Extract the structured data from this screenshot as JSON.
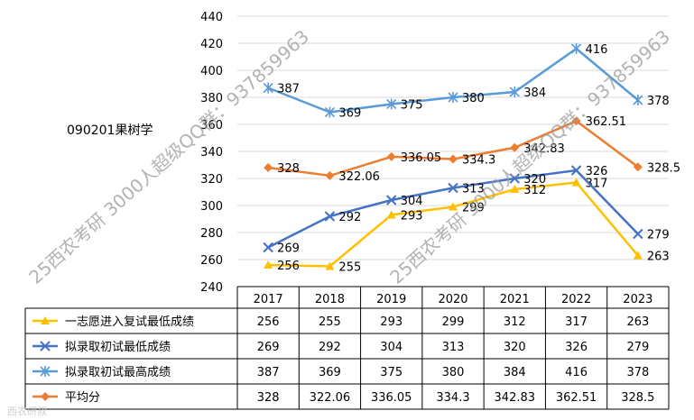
{
  "panel_label": "090201果树学",
  "watermarks": [
    "25西农考研 3000人超级QQ群：937859963",
    "25西农考研 3000人超级QQ群：937859963"
  ],
  "corner_logo": "西农研叔",
  "chart_data": {
    "type": "line",
    "categories": [
      "2017",
      "2018",
      "2019",
      "2020",
      "2021",
      "2022",
      "2023"
    ],
    "series": [
      {
        "name": "一志愿进入复试最低成绩",
        "values": [
          256,
          255,
          293,
          299,
          312,
          317,
          263
        ],
        "labels": [
          "256",
          "255",
          "293",
          "299",
          "312",
          "317",
          "263"
        ],
        "color": "#FFC000",
        "marker": "triangle"
      },
      {
        "name": "拟录取初试最低成绩",
        "values": [
          269,
          292,
          304,
          313,
          320,
          326,
          279
        ],
        "labels": [
          "269",
          "292",
          "304",
          "313",
          "320",
          "326",
          "279"
        ],
        "color": "#4472C4",
        "marker": "x"
      },
      {
        "name": "拟录取初试最高成绩",
        "values": [
          387,
          369,
          375,
          380,
          384,
          416,
          378
        ],
        "labels": [
          "387",
          "369",
          "375",
          "380",
          "384",
          "416",
          "378"
        ],
        "color": "#5B9BD5",
        "marker": "star"
      },
      {
        "name": "平均分",
        "values": [
          328,
          322.06,
          336.05,
          334.3,
          342.83,
          362.51,
          328.5
        ],
        "labels": [
          "328",
          "322.06",
          "336.05",
          "334.3",
          "342.83",
          "362.51",
          "328.5"
        ],
        "color": "#ED7D31",
        "marker": "diamond"
      }
    ],
    "yticks": [
      "440",
      "420",
      "400",
      "380",
      "360",
      "340",
      "320",
      "300",
      "280",
      "260",
      "240"
    ],
    "ylim": [
      240,
      440
    ],
    "grid": true,
    "legend": "data-table"
  }
}
